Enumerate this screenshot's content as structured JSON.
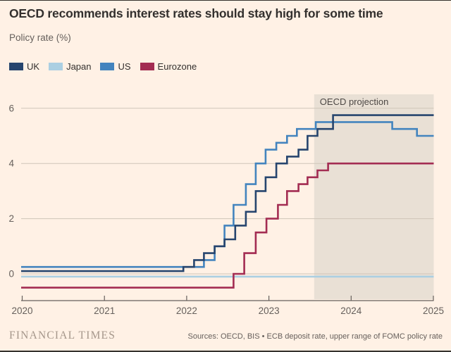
{
  "page": {
    "background": "#FFF1E5",
    "edge_color": "#35322E"
  },
  "header": {
    "title": "OECD recommends interest rates should stay high for some time",
    "subtitle": "Policy rate (%)"
  },
  "legend": [
    {
      "label": "UK",
      "color": "#26456E"
    },
    {
      "label": "Japan",
      "color": "#ABCFE2"
    },
    {
      "label": "US",
      "color": "#4384BE"
    },
    {
      "label": "Eurozone",
      "color": "#A32C52"
    }
  ],
  "chart_data": {
    "type": "line",
    "subtype": "step-after",
    "title": "OECD recommends interest rates should stay high for some time",
    "ylabel": "Policy rate (%)",
    "xlabel": "",
    "xlim": [
      2020,
      2025
    ],
    "ylim": [
      -1,
      6.5
    ],
    "x_ticks": [
      2020,
      2021,
      2022,
      2023,
      2024,
      2025
    ],
    "y_ticks": [
      0,
      2,
      4,
      6
    ],
    "grid": "horizontal",
    "grid_color": "#CFC5B9",
    "axis_color": "#66605C",
    "annotation": {
      "label": "OECD projection",
      "x_start": 2023.55,
      "x_end": 2025,
      "fill": "#E9E0D5",
      "text_color": "#4D4845"
    },
    "series": [
      {
        "name": "Japan",
        "color": "#ABCFE2",
        "points": [
          [
            2020.0,
            -0.1
          ]
        ]
      },
      {
        "name": "Eurozone",
        "color": "#A32C52",
        "points": [
          [
            2020.0,
            -0.5
          ],
          [
            2022.57,
            0.0
          ],
          [
            2022.7,
            0.75
          ],
          [
            2022.84,
            1.5
          ],
          [
            2022.97,
            2.0
          ],
          [
            2023.11,
            2.5
          ],
          [
            2023.22,
            3.0
          ],
          [
            2023.36,
            3.25
          ],
          [
            2023.47,
            3.5
          ],
          [
            2023.59,
            3.75
          ],
          [
            2023.72,
            4.0
          ]
        ]
      },
      {
        "name": "US",
        "color": "#4384BE",
        "points": [
          [
            2020.0,
            0.25
          ],
          [
            2022.21,
            0.5
          ],
          [
            2022.34,
            1.0
          ],
          [
            2022.46,
            1.75
          ],
          [
            2022.57,
            2.5
          ],
          [
            2022.72,
            3.25
          ],
          [
            2022.84,
            4.0
          ],
          [
            2022.96,
            4.5
          ],
          [
            2023.09,
            4.75
          ],
          [
            2023.22,
            5.0
          ],
          [
            2023.34,
            5.25
          ],
          [
            2023.57,
            5.5
          ],
          [
            2024.5,
            5.25
          ],
          [
            2024.8,
            5.0
          ]
        ]
      },
      {
        "name": "UK",
        "color": "#26456E",
        "points": [
          [
            2020.0,
            0.1
          ],
          [
            2021.96,
            0.25
          ],
          [
            2022.09,
            0.5
          ],
          [
            2022.21,
            0.75
          ],
          [
            2022.34,
            1.0
          ],
          [
            2022.46,
            1.25
          ],
          [
            2022.59,
            1.75
          ],
          [
            2022.72,
            2.25
          ],
          [
            2022.84,
            3.0
          ],
          [
            2022.96,
            3.5
          ],
          [
            2023.09,
            4.0
          ],
          [
            2023.22,
            4.25
          ],
          [
            2023.36,
            4.5
          ],
          [
            2023.47,
            5.0
          ],
          [
            2023.59,
            5.25
          ],
          [
            2023.78,
            5.75
          ]
        ]
      }
    ]
  },
  "footer": {
    "brand": "FINANCIAL TIMES",
    "sources": "Sources: OECD, BIS • ECB deposit rate, upper range of FOMC policy rate"
  }
}
